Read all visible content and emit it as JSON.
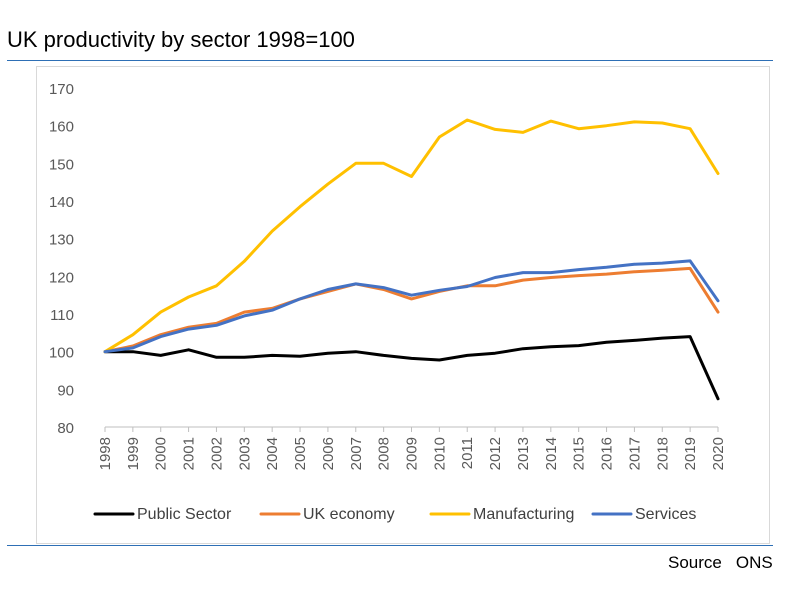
{
  "title": "UK productivity by sector 1998=100",
  "source": {
    "label": "Source",
    "value": "ONS"
  },
  "colors": {
    "public_sector": "#000000",
    "uk_economy": "#ed7d31",
    "manufacturing": "#ffc000",
    "services": "#4472c4",
    "rule": "#2e6fb5"
  },
  "chart_data": {
    "type": "line",
    "title": "UK productivity by sector 1998=100",
    "xlabel": "",
    "ylabel": "",
    "ylim": [
      80,
      170
    ],
    "yticks": [
      80,
      90,
      100,
      110,
      120,
      130,
      140,
      150,
      160,
      170
    ],
    "grid": false,
    "legend": "bottom",
    "x": [
      "1998",
      "1999",
      "2000",
      "2001",
      "2002",
      "2003",
      "2004",
      "2005",
      "2006",
      "2007",
      "2008",
      "2009",
      "2010",
      "2011",
      "2012",
      "2013",
      "2014",
      "2015",
      "2016",
      "2017",
      "2018",
      "2019",
      "2020"
    ],
    "series": [
      {
        "name": "Public Sector",
        "color": "#000000",
        "values": [
          100,
          100,
          99,
          100.5,
          98.5,
          98.5,
          99,
          98.8,
          99.6,
          100,
          99,
          98.2,
          97.8,
          99,
          99.6,
          100.8,
          101.3,
          101.6,
          102.5,
          103,
          103.6,
          104,
          87.5
        ]
      },
      {
        "name": "UK economy",
        "color": "#ed7d31",
        "values": [
          100,
          101.5,
          104.5,
          106.5,
          107.5,
          110.5,
          111.5,
          114,
          116,
          118,
          116.5,
          114,
          116,
          117.5,
          117.5,
          119,
          119.7,
          120.2,
          120.6,
          121.2,
          121.6,
          122.1,
          110.5
        ]
      },
      {
        "name": "Manufacturing",
        "color": "#ffc000",
        "values": [
          100,
          104.5,
          110.5,
          114.5,
          117.5,
          124,
          132,
          138.5,
          144.5,
          150,
          150,
          146.5,
          157,
          161.5,
          159,
          158.2,
          161.2,
          159.2,
          160,
          161,
          160.7,
          159.2,
          147.3
        ]
      },
      {
        "name": "Services",
        "color": "#4472c4",
        "values": [
          100,
          101,
          104,
          106,
          107,
          109.5,
          111,
          114,
          116.5,
          118,
          117,
          115,
          116.3,
          117.3,
          119.7,
          121,
          121,
          121.8,
          122.4,
          123.2,
          123.5,
          124.1,
          113.5
        ]
      }
    ]
  }
}
